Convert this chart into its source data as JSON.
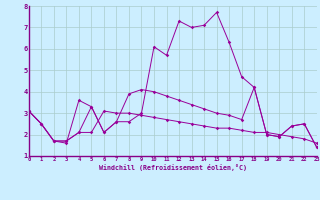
{
  "xlabel": "Windchill (Refroidissement éolien,°C)",
  "xlim": [
    0,
    23
  ],
  "ylim": [
    1,
    8
  ],
  "xticks": [
    0,
    1,
    2,
    3,
    4,
    5,
    6,
    7,
    8,
    9,
    10,
    11,
    12,
    13,
    14,
    15,
    16,
    17,
    18,
    19,
    20,
    21,
    22,
    23
  ],
  "yticks": [
    1,
    2,
    3,
    4,
    5,
    6,
    7,
    8
  ],
  "bg_color": "#cceeff",
  "grid_color": "#aacccc",
  "line_color": "#990099",
  "series1": [
    3.1,
    2.5,
    1.7,
    1.6,
    3.6,
    3.3,
    2.1,
    2.6,
    2.6,
    3.0,
    6.1,
    5.7,
    7.3,
    7.0,
    7.1,
    7.7,
    6.3,
    4.7,
    4.2,
    2.0,
    1.9,
    2.4,
    2.5,
    1.4
  ],
  "series2": [
    3.1,
    2.5,
    1.7,
    1.7,
    2.1,
    2.1,
    3.1,
    3.0,
    3.0,
    2.9,
    2.8,
    2.7,
    2.6,
    2.5,
    2.4,
    2.3,
    2.3,
    2.2,
    2.1,
    2.1,
    2.0,
    1.9,
    1.8,
    1.6
  ],
  "series3": [
    3.1,
    2.5,
    1.7,
    1.7,
    2.1,
    3.3,
    2.1,
    2.6,
    3.9,
    4.1,
    4.0,
    3.8,
    3.6,
    3.4,
    3.2,
    3.0,
    2.9,
    2.7,
    4.2,
    2.0,
    1.9,
    2.4,
    2.5,
    1.4
  ]
}
